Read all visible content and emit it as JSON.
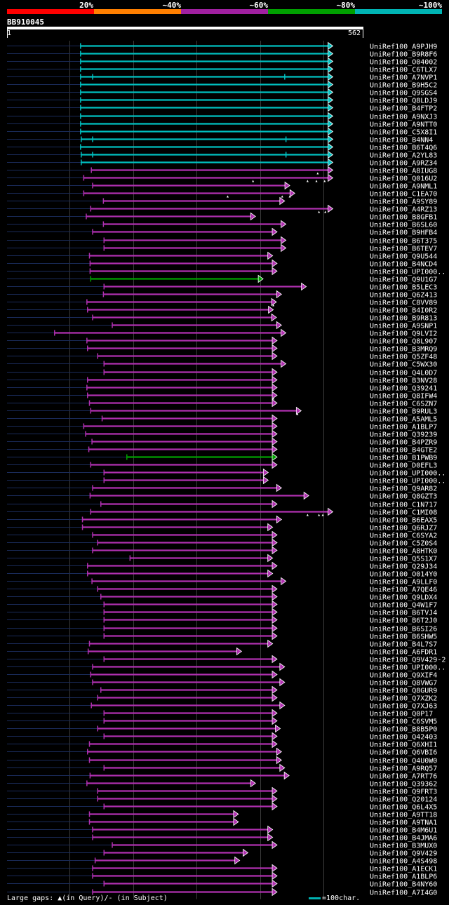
{
  "header": {
    "scale_labels": [
      "20%",
      "~40%",
      "~60%",
      "~80%",
      "~100%"
    ],
    "scale_colors": [
      "#ff0000",
      "#ff7f00",
      "#a020a0",
      "#00a000",
      "#00b4b4"
    ],
    "query_id": "BB910045",
    "query_start": "1",
    "query_end": "562"
  },
  "colors": {
    "cyan": "#00c0c0",
    "magenta": "#b030b0",
    "green": "#00a000",
    "dim": "#1a2b5a",
    "grid": "#3a3a3a"
  },
  "grid_positions_aa": [
    100,
    200,
    300,
    400,
    500
  ],
  "hits": [
    {
      "name": "UniRef100_A9PJH9",
      "start": 117,
      "end": 515,
      "color": "cyan",
      "marks": []
    },
    {
      "name": "UniRef100_B9R8F6",
      "start": 117,
      "end": 515,
      "color": "cyan",
      "marks": []
    },
    {
      "name": "UniRef100_O04002",
      "start": 117,
      "end": 515,
      "color": "cyan",
      "marks": []
    },
    {
      "name": "UniRef100_C6TLX7",
      "start": 117,
      "end": 515,
      "color": "cyan",
      "marks": []
    },
    {
      "name": "UniRef100_A7NVP1",
      "start": 117,
      "end": 515,
      "color": "cyan",
      "marks": [
        {
          "type": "tick",
          "pos": 136
        },
        {
          "type": "tick",
          "pos": 439
        }
      ]
    },
    {
      "name": "UniRef100_B9H5C2",
      "start": 117,
      "end": 515,
      "color": "cyan",
      "marks": []
    },
    {
      "name": "UniRef100_Q9SGS4",
      "start": 117,
      "end": 515,
      "color": "cyan",
      "marks": []
    },
    {
      "name": "UniRef100_Q8LDJ9",
      "start": 117,
      "end": 515,
      "color": "cyan",
      "marks": []
    },
    {
      "name": "UniRef100_B4FTP2",
      "start": 117,
      "end": 515,
      "color": "cyan",
      "marks": []
    },
    {
      "name": "UniRef100_A9NXJ3",
      "start": 117,
      "end": 515,
      "color": "cyan",
      "marks": []
    },
    {
      "name": "UniRef100_A9NTT0",
      "start": 117,
      "end": 515,
      "color": "cyan",
      "marks": []
    },
    {
      "name": "UniRef100_C5X8I1",
      "start": 117,
      "end": 515,
      "color": "cyan",
      "marks": []
    },
    {
      "name": "UniRef100_B4NN4",
      "start": 118,
      "end": 515,
      "color": "cyan",
      "marks": [
        {
          "type": "tick",
          "pos": 136
        },
        {
          "type": "tick",
          "pos": 441
        }
      ]
    },
    {
      "name": "UniRef100_B6T4Q6",
      "start": 117,
      "end": 515,
      "color": "cyan",
      "marks": []
    },
    {
      "name": "UniRef100_A2YL83",
      "start": 118,
      "end": 515,
      "color": "cyan",
      "marks": [
        {
          "type": "tick",
          "pos": 136
        },
        {
          "type": "tick",
          "pos": 441
        }
      ]
    },
    {
      "name": "UniRef100_A9RZ34",
      "start": 118,
      "end": 515,
      "color": "cyan",
      "marks": []
    },
    {
      "name": "UniRef100_A8IUG8",
      "start": 134,
      "end": 515,
      "color": "magenta",
      "marks": [
        {
          "type": "insert",
          "pos": 491
        }
      ]
    },
    {
      "name": "UniRef100_Q016U2",
      "start": 122,
      "end": 515,
      "color": "magenta",
      "marks": [
        {
          "type": "insert",
          "pos": 389
        },
        {
          "type": "insert",
          "pos": 475
        },
        {
          "type": "insert",
          "pos": 489
        },
        {
          "type": "insert",
          "pos": 502
        }
      ]
    },
    {
      "name": "UniRef100_A9NML1",
      "start": 136,
      "end": 447,
      "color": "magenta",
      "marks": []
    },
    {
      "name": "UniRef100_C1EA70",
      "start": 122,
      "end": 455,
      "color": "magenta",
      "marks": [
        {
          "type": "insert",
          "pos": 349
        },
        {
          "type": "insert",
          "pos": 435
        },
        {
          "type": "insert",
          "pos": 447
        }
      ]
    },
    {
      "name": "UniRef100_A9SY89",
      "start": 153,
      "end": 439,
      "color": "magenta",
      "marks": []
    },
    {
      "name": "UniRef100_A4RZ13",
      "start": 133,
      "end": 515,
      "color": "magenta",
      "marks": [
        {
          "type": "insert",
          "pos": 493
        },
        {
          "type": "insert",
          "pos": 503
        }
      ]
    },
    {
      "name": "UniRef100_B8GFB1",
      "start": 126,
      "end": 393,
      "color": "magenta",
      "marks": []
    },
    {
      "name": "UniRef100_B6SL60",
      "start": 153,
      "end": 441,
      "color": "magenta",
      "marks": []
    },
    {
      "name": "UniRef100_B9HFB4",
      "start": 136,
      "end": 427,
      "color": "magenta",
      "marks": []
    },
    {
      "name": "UniRef100_B6T375",
      "start": 154,
      "end": 441,
      "color": "magenta",
      "marks": []
    },
    {
      "name": "UniRef100_B6TEV7",
      "start": 154,
      "end": 441,
      "color": "magenta",
      "marks": []
    },
    {
      "name": "UniRef100_Q9U544",
      "start": 131,
      "end": 420,
      "color": "magenta",
      "marks": []
    },
    {
      "name": "UniRef100_B4NCD4",
      "start": 132,
      "end": 427,
      "color": "magenta",
      "marks": []
    },
    {
      "name": "UniRef100_UPI000..",
      "start": 132,
      "end": 427,
      "color": "magenta",
      "marks": []
    },
    {
      "name": "UniRef100_Q9U1G7",
      "start": 133,
      "end": 405,
      "color": "green",
      "marks": []
    },
    {
      "name": "UniRef100_B5LEC3",
      "start": 154,
      "end": 473,
      "color": "magenta",
      "marks": []
    },
    {
      "name": "UniRef100_Q6Z413",
      "start": 153,
      "end": 434,
      "color": "magenta",
      "marks": []
    },
    {
      "name": "UniRef100_C8VV89",
      "start": 127,
      "end": 426,
      "color": "magenta",
      "marks": [
        {
          "type": "insert",
          "pos": 421
        }
      ]
    },
    {
      "name": "UniRef100_B4I0R2",
      "start": 128,
      "end": 421,
      "color": "magenta",
      "marks": []
    },
    {
      "name": "UniRef100_B9R813",
      "start": 136,
      "end": 426,
      "color": "magenta",
      "marks": []
    },
    {
      "name": "UniRef100_A9SNP1",
      "start": 167,
      "end": 434,
      "color": "magenta",
      "marks": []
    },
    {
      "name": "UniRef100_Q9LVI2",
      "start": 76,
      "end": 441,
      "color": "magenta",
      "marks": []
    },
    {
      "name": "UniRef100_Q8L907",
      "start": 127,
      "end": 427,
      "color": "magenta",
      "marks": []
    },
    {
      "name": "UniRef100_B3MRQ9",
      "start": 128,
      "end": 427,
      "color": "magenta",
      "marks": []
    },
    {
      "name": "UniRef100_Q5ZF48",
      "start": 144,
      "end": 427,
      "color": "magenta",
      "marks": []
    },
    {
      "name": "UniRef100_C5WX30",
      "start": 154,
      "end": 441,
      "color": "magenta",
      "marks": []
    },
    {
      "name": "UniRef100_Q4L0D7",
      "start": 154,
      "end": 427,
      "color": "magenta",
      "marks": []
    },
    {
      "name": "UniRef100_B3NV28",
      "start": 128,
      "end": 427,
      "color": "magenta",
      "marks": []
    },
    {
      "name": "UniRef100_Q39241",
      "start": 127,
      "end": 427,
      "color": "magenta",
      "marks": []
    },
    {
      "name": "UniRef100_Q8IFW4",
      "start": 128,
      "end": 427,
      "color": "magenta",
      "marks": [
        {
          "type": "insert",
          "pos": 421
        }
      ]
    },
    {
      "name": "UniRef100_C6SZN7",
      "start": 131,
      "end": 427,
      "color": "magenta",
      "marks": []
    },
    {
      "name": "UniRef100_B9RUL3",
      "start": 133,
      "end": 465,
      "color": "magenta",
      "marks": [
        {
          "type": "insert",
          "pos": 459
        }
      ]
    },
    {
      "name": "UniRef100_A5AML5",
      "start": 151,
      "end": 427,
      "color": "magenta",
      "marks": []
    },
    {
      "name": "UniRef100_A1BLP7",
      "start": 122,
      "end": 427,
      "color": "magenta",
      "marks": []
    },
    {
      "name": "UniRef100_Q39239",
      "start": 125,
      "end": 427,
      "color": "magenta",
      "marks": []
    },
    {
      "name": "UniRef100_B4PZR9",
      "start": 135,
      "end": 427,
      "color": "magenta",
      "marks": []
    },
    {
      "name": "UniRef100_B4GTE2",
      "start": 130,
      "end": 427,
      "color": "magenta",
      "marks": []
    },
    {
      "name": "UniRef100_B1PWB9",
      "start": 190,
      "end": 427,
      "color": "green",
      "marks": []
    },
    {
      "name": "UniRef100_D0EFL3",
      "start": 133,
      "end": 427,
      "color": "magenta",
      "marks": []
    },
    {
      "name": "UniRef100_UPI000..",
      "start": 154,
      "end": 413,
      "color": "magenta",
      "marks": []
    },
    {
      "name": "UniRef100_UPI000..",
      "start": 154,
      "end": 413,
      "color": "magenta",
      "marks": []
    },
    {
      "name": "UniRef100_Q9AR82",
      "start": 136,
      "end": 434,
      "color": "magenta",
      "marks": []
    },
    {
      "name": "UniRef100_Q8GZT3",
      "start": 132,
      "end": 477,
      "color": "magenta",
      "marks": []
    },
    {
      "name": "UniRef100_C1N717",
      "start": 149,
      "end": 427,
      "color": "magenta",
      "marks": []
    },
    {
      "name": "UniRef100_C1MI08",
      "start": 133,
      "end": 515,
      "color": "magenta",
      "marks": [
        {
          "type": "insert",
          "pos": 475
        },
        {
          "type": "insert",
          "pos": 493
        },
        {
          "type": "insert",
          "pos": 499
        }
      ]
    },
    {
      "name": "UniRef100_B6EAX5",
      "start": 120,
      "end": 434,
      "color": "magenta",
      "marks": []
    },
    {
      "name": "UniRef100_Q6RJZ7",
      "start": 120,
      "end": 420,
      "color": "magenta",
      "marks": []
    },
    {
      "name": "UniRef100_C6SYA2",
      "start": 136,
      "end": 427,
      "color": "magenta",
      "marks": []
    },
    {
      "name": "UniRef100_C5Z0S4",
      "start": 144,
      "end": 427,
      "color": "magenta",
      "marks": []
    },
    {
      "name": "UniRef100_A8HTK0",
      "start": 136,
      "end": 427,
      "color": "magenta",
      "marks": []
    },
    {
      "name": "UniRef100_Q5S1X7",
      "start": 195,
      "end": 420,
      "color": "magenta",
      "marks": []
    },
    {
      "name": "UniRef100_Q29J34",
      "start": 128,
      "end": 427,
      "color": "magenta",
      "marks": []
    },
    {
      "name": "UniRef100_O014Y0",
      "start": 128,
      "end": 420,
      "color": "magenta",
      "marks": []
    },
    {
      "name": "UniRef100_A9LLF0",
      "start": 135,
      "end": 441,
      "color": "magenta",
      "marks": []
    },
    {
      "name": "UniRef100_A7QE46",
      "start": 144,
      "end": 427,
      "color": "magenta",
      "marks": []
    },
    {
      "name": "UniRef100_Q9LDX4",
      "start": 149,
      "end": 427,
      "color": "magenta",
      "marks": []
    },
    {
      "name": "UniRef100_Q4W1F7",
      "start": 154,
      "end": 427,
      "color": "magenta",
      "marks": []
    },
    {
      "name": "UniRef100_B6TVJ4",
      "start": 154,
      "end": 427,
      "color": "magenta",
      "marks": []
    },
    {
      "name": "UniRef100_B6T2J0",
      "start": 154,
      "end": 427,
      "color": "magenta",
      "marks": []
    },
    {
      "name": "UniRef100_B6SI26",
      "start": 154,
      "end": 427,
      "color": "magenta",
      "marks": []
    },
    {
      "name": "UniRef100_B6SHW5",
      "start": 154,
      "end": 427,
      "color": "magenta",
      "marks": []
    },
    {
      "name": "UniRef100_B4L7S7",
      "start": 131,
      "end": 420,
      "color": "magenta",
      "marks": []
    },
    {
      "name": "UniRef100_A6FDR1",
      "start": 129,
      "end": 371,
      "color": "magenta",
      "marks": []
    },
    {
      "name": "UniRef100_Q9V429-2",
      "start": 154,
      "end": 427,
      "color": "magenta",
      "marks": []
    },
    {
      "name": "UniRef100_UPI000..",
      "start": 136,
      "end": 439,
      "color": "magenta",
      "marks": []
    },
    {
      "name": "UniRef100_Q9XIF4",
      "start": 133,
      "end": 427,
      "color": "magenta",
      "marks": []
    },
    {
      "name": "UniRef100_Q8VWG7",
      "start": 136,
      "end": 439,
      "color": "magenta",
      "marks": []
    },
    {
      "name": "UniRef100_Q8GUR9",
      "start": 149,
      "end": 427,
      "color": "magenta",
      "marks": []
    },
    {
      "name": "UniRef100_Q7XZK2",
      "start": 144,
      "end": 427,
      "color": "magenta",
      "marks": []
    },
    {
      "name": "UniRef100_Q7XJ63",
      "start": 134,
      "end": 439,
      "color": "magenta",
      "marks": []
    },
    {
      "name": "UniRef100_Q0P17",
      "start": 154,
      "end": 427,
      "color": "magenta",
      "marks": []
    },
    {
      "name": "UniRef100_C6SVM5",
      "start": 154,
      "end": 427,
      "color": "magenta",
      "marks": []
    },
    {
      "name": "UniRef100_B8B5P0",
      "start": 144,
      "end": 432,
      "color": "magenta",
      "marks": []
    },
    {
      "name": "UniRef100_Q42403",
      "start": 154,
      "end": 427,
      "color": "magenta",
      "marks": []
    },
    {
      "name": "UniRef100_Q6XHI1",
      "start": 131,
      "end": 427,
      "color": "magenta",
      "marks": []
    },
    {
      "name": "UniRef100_Q6VBI6",
      "start": 128,
      "end": 434,
      "color": "magenta",
      "marks": []
    },
    {
      "name": "UniRef100_Q4U0W0",
      "start": 131,
      "end": 434,
      "color": "magenta",
      "marks": []
    },
    {
      "name": "UniRef100_A9RQ57",
      "start": 154,
      "end": 439,
      "color": "magenta",
      "marks": []
    },
    {
      "name": "UniRef100_A7RT76",
      "start": 132,
      "end": 446,
      "color": "magenta",
      "marks": []
    },
    {
      "name": "UniRef100_Q39362",
      "start": 127,
      "end": 393,
      "color": "magenta",
      "marks": []
    },
    {
      "name": "UniRef100_Q9FRT3",
      "start": 144,
      "end": 427,
      "color": "magenta",
      "marks": []
    },
    {
      "name": "UniRef100_Q20124",
      "start": 144,
      "end": 427,
      "color": "magenta",
      "marks": []
    },
    {
      "name": "UniRef100_Q6L4X5",
      "start": 154,
      "end": 427,
      "color": "magenta",
      "marks": []
    },
    {
      "name": "UniRef100_A9TT18",
      "start": 131,
      "end": 366,
      "color": "magenta",
      "marks": []
    },
    {
      "name": "UniRef100_A9TNA1",
      "start": 131,
      "end": 366,
      "color": "magenta",
      "marks": []
    },
    {
      "name": "UniRef100_B4M6U1",
      "start": 136,
      "end": 420,
      "color": "magenta",
      "marks": []
    },
    {
      "name": "UniRef100_B4JMA6",
      "start": 136,
      "end": 420,
      "color": "magenta",
      "marks": []
    },
    {
      "name": "UniRef100_B3MUX0",
      "start": 167,
      "end": 427,
      "color": "magenta",
      "marks": []
    },
    {
      "name": "UniRef100_Q9V429",
      "start": 154,
      "end": 381,
      "color": "magenta",
      "marks": []
    },
    {
      "name": "UniRef100_A4S498",
      "start": 140,
      "end": 368,
      "color": "magenta",
      "marks": []
    },
    {
      "name": "UniRef100_A1ECK1",
      "start": 136,
      "end": 427,
      "color": "magenta",
      "marks": []
    },
    {
      "name": "UniRef100_A1BLP6",
      "start": 136,
      "end": 427,
      "color": "magenta",
      "marks": []
    },
    {
      "name": "UniRef100_B4NY60",
      "start": 154,
      "end": 427,
      "color": "magenta",
      "marks": []
    },
    {
      "name": "UniRef100_A7I4G0",
      "start": 136,
      "end": 427,
      "color": "magenta",
      "marks": []
    }
  ],
  "legend": {
    "gaps_text": "Large gaps: ▲(in Query)/- (in Subject)",
    "scale_ref_text": "=100char."
  }
}
